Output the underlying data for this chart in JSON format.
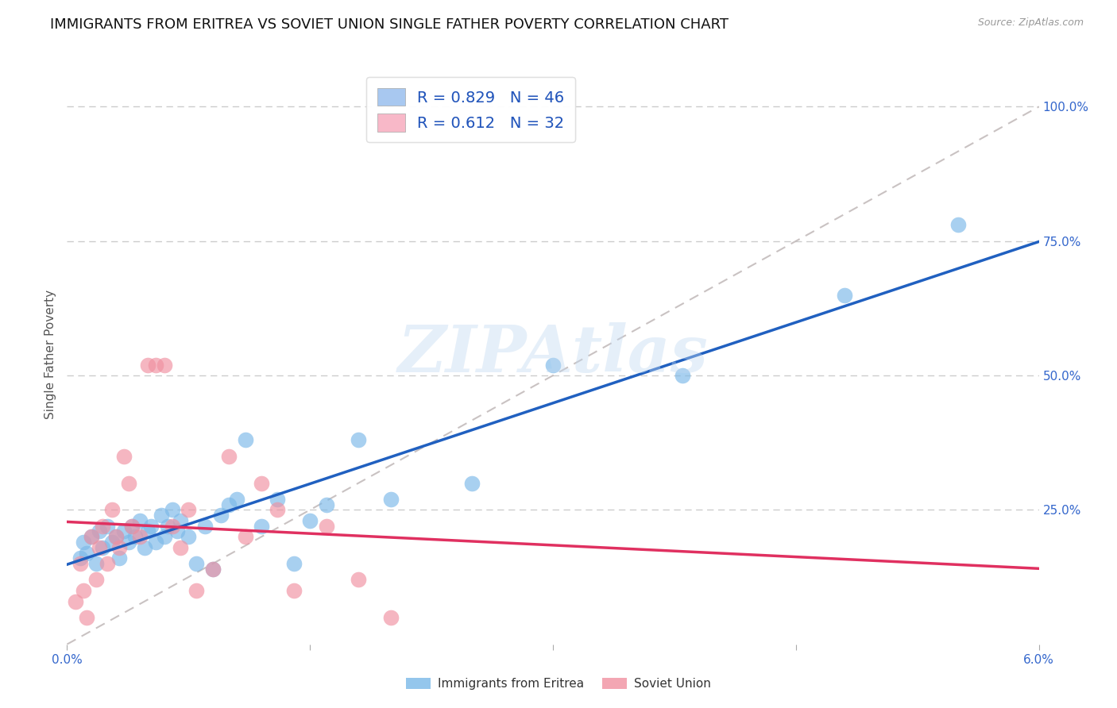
{
  "title": "IMMIGRANTS FROM ERITREA VS SOVIET UNION SINGLE FATHER POVERTY CORRELATION CHART",
  "source": "Source: ZipAtlas.com",
  "ylabel": "Single Father Poverty",
  "xlim": [
    0.0,
    0.06
  ],
  "ylim": [
    0.0,
    1.08
  ],
  "legend_entries": [
    {
      "label": "R = 0.829   N = 46",
      "facecolor": "#a8c8f0"
    },
    {
      "label": "R = 0.612   N = 32",
      "facecolor": "#f8b8c8"
    }
  ],
  "eritrea_color": "#7ab8e8",
  "soviet_color": "#f090a0",
  "eritrea_line_color": "#2060c0",
  "soviet_line_color": "#e03060",
  "diagonal_color": "#c0b8b8",
  "watermark": "ZIPAtlas",
  "eritrea_points_x": [
    0.0008,
    0.001,
    0.0012,
    0.0015,
    0.0018,
    0.002,
    0.0022,
    0.0025,
    0.0028,
    0.003,
    0.0032,
    0.0035,
    0.0038,
    0.004,
    0.0042,
    0.0045,
    0.0048,
    0.005,
    0.0052,
    0.0055,
    0.0058,
    0.006,
    0.0062,
    0.0065,
    0.0068,
    0.007,
    0.0075,
    0.008,
    0.0085,
    0.009,
    0.0095,
    0.01,
    0.0105,
    0.011,
    0.012,
    0.013,
    0.014,
    0.015,
    0.016,
    0.018,
    0.02,
    0.025,
    0.03,
    0.038,
    0.048,
    0.055
  ],
  "eritrea_points_y": [
    0.16,
    0.19,
    0.17,
    0.2,
    0.15,
    0.21,
    0.18,
    0.22,
    0.19,
    0.2,
    0.16,
    0.21,
    0.19,
    0.22,
    0.2,
    0.23,
    0.18,
    0.21,
    0.22,
    0.19,
    0.24,
    0.2,
    0.22,
    0.25,
    0.21,
    0.23,
    0.2,
    0.15,
    0.22,
    0.14,
    0.24,
    0.26,
    0.27,
    0.38,
    0.22,
    0.27,
    0.15,
    0.23,
    0.26,
    0.38,
    0.27,
    0.3,
    0.52,
    0.5,
    0.65,
    0.78
  ],
  "soviet_points_x": [
    0.0005,
    0.0008,
    0.001,
    0.0012,
    0.0015,
    0.0018,
    0.002,
    0.0022,
    0.0025,
    0.0028,
    0.003,
    0.0032,
    0.0035,
    0.0038,
    0.004,
    0.0045,
    0.005,
    0.0055,
    0.006,
    0.0065,
    0.007,
    0.0075,
    0.008,
    0.009,
    0.01,
    0.011,
    0.012,
    0.013,
    0.014,
    0.016,
    0.018,
    0.02
  ],
  "soviet_points_y": [
    0.08,
    0.15,
    0.1,
    0.05,
    0.2,
    0.12,
    0.18,
    0.22,
    0.15,
    0.25,
    0.2,
    0.18,
    0.35,
    0.3,
    0.22,
    0.2,
    0.52,
    0.52,
    0.52,
    0.22,
    0.18,
    0.25,
    0.1,
    0.14,
    0.35,
    0.2,
    0.3,
    0.25,
    0.1,
    0.22,
    0.12,
    0.05
  ],
  "background_color": "#ffffff",
  "grid_color": "#cccccc",
  "title_color": "#111111",
  "axis_tick_color": "#3366cc",
  "title_fontsize": 13,
  "axis_fontsize": 11,
  "legend_fontsize": 14,
  "ytick_positions": [
    0.25,
    0.5,
    0.75,
    1.0
  ],
  "ytick_labels": [
    "25.0%",
    "50.0%",
    "75.0%",
    "100.0%"
  ],
  "xtick_positions": [
    0.0,
    0.015,
    0.03,
    0.045,
    0.06
  ],
  "xtick_labels": [
    "0.0%",
    "",
    "",
    "",
    "6.0%"
  ]
}
